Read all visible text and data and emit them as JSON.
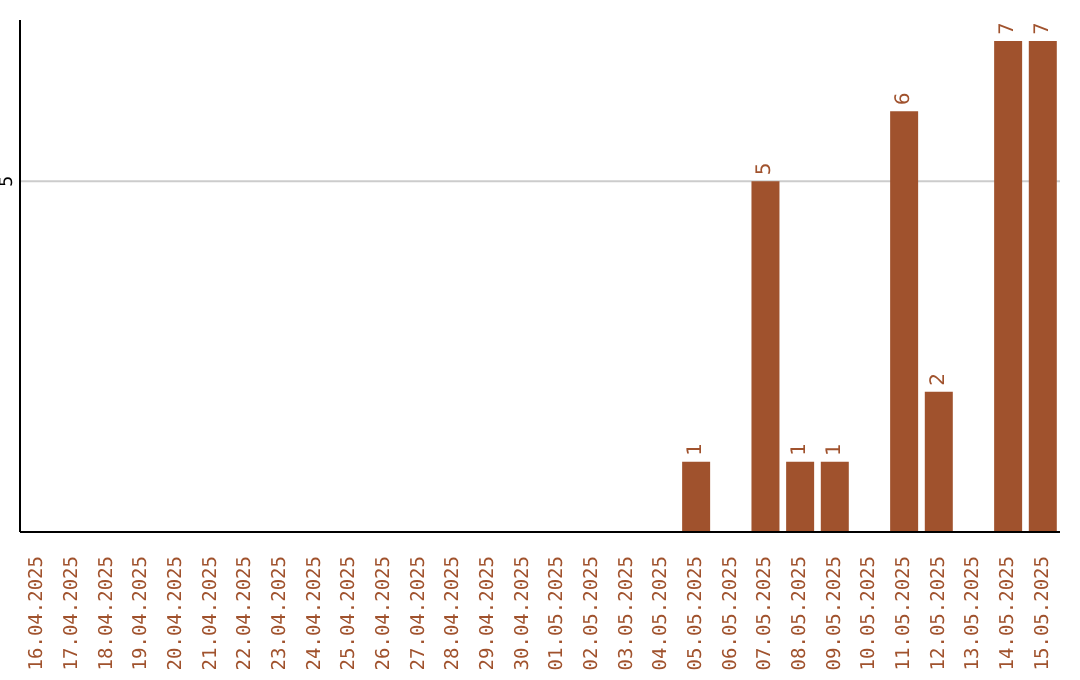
{
  "chart_data": {
    "type": "bar",
    "categories": [
      "16.04.2025",
      "17.04.2025",
      "18.04.2025",
      "19.04.2025",
      "20.04.2025",
      "21.04.2025",
      "22.04.2025",
      "23.04.2025",
      "24.04.2025",
      "25.04.2025",
      "26.04.2025",
      "27.04.2025",
      "28.04.2025",
      "29.04.2025",
      "30.04.2025",
      "01.05.2025",
      "02.05.2025",
      "03.05.2025",
      "04.05.2025",
      "05.05.2025",
      "06.05.2025",
      "07.05.2025",
      "08.05.2025",
      "09.05.2025",
      "10.05.2025",
      "11.05.2025",
      "12.05.2025",
      "13.05.2025",
      "14.05.2025",
      "15.05.2025"
    ],
    "values": [
      null,
      null,
      null,
      null,
      null,
      null,
      null,
      null,
      null,
      null,
      null,
      null,
      null,
      null,
      null,
      null,
      null,
      null,
      null,
      1,
      null,
      5,
      1,
      1,
      null,
      6,
      2,
      null,
      7,
      7
    ],
    "color": "#a0522d",
    "ylim": [
      0,
      7.3
    ],
    "yticks": [
      5
    ],
    "grid": "y",
    "data_labels": true
  }
}
